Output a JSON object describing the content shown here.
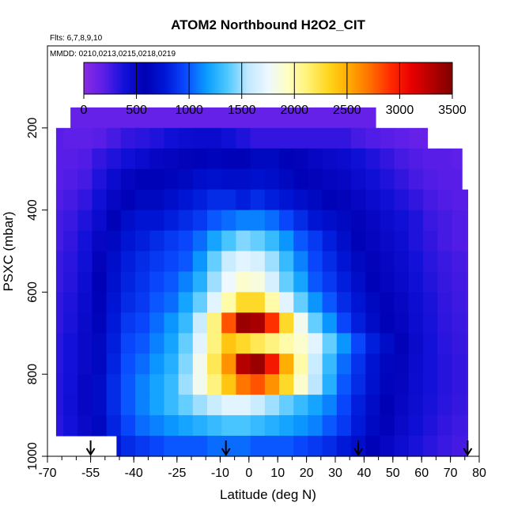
{
  "chart_data": {
    "type": "heatmap",
    "title": "ATOM2 Northbound H2O2_CIT",
    "flights_label": "Flts: 6,7,8,9,10",
    "mmdd_label": "MMDD: 0210,0213,0215,0218,0219",
    "xlabel": "Latitude (deg N)",
    "ylabel": "PSXC (mbar)",
    "xlim": [
      -70,
      80
    ],
    "ylim": [
      1000,
      0
    ],
    "x_tick_labels": [
      "-70",
      "-55",
      "-40",
      "-25",
      "-10",
      "0",
      "10",
      "20",
      "30",
      "40",
      "50",
      "60",
      "70",
      "80"
    ],
    "x_tick_values": [
      -70,
      -55,
      -40,
      -25,
      -10,
      0,
      10,
      20,
      30,
      40,
      50,
      60,
      70,
      80
    ],
    "y_tick_labels": [
      "200",
      "400",
      "600",
      "800",
      "1000"
    ],
    "y_tick_values": [
      200,
      400,
      600,
      800,
      1000
    ],
    "colorbar": {
      "range": [
        0,
        3500
      ],
      "tick_labels": [
        "0",
        "500",
        "1000",
        "1500",
        "2000",
        "2500",
        "3000",
        "3500"
      ],
      "tick_values": [
        0,
        500,
        1000,
        1500,
        2000,
        2500,
        3000,
        3500
      ],
      "colors": [
        "#8a2be2",
        "#5a1ee8",
        "#1010d8",
        "#0000b4",
        "#0018d8",
        "#0a4cff",
        "#0a9cff",
        "#4cc8ff",
        "#bfe8ff",
        "#eef8ff",
        "#ffffc0",
        "#fff070",
        "#ffd41a",
        "#ffa800",
        "#ff6e00",
        "#ff2a00",
        "#e80000",
        "#b40000",
        "#800000"
      ]
    },
    "flight_latitude_markers": [
      -55,
      -8,
      38,
      76
    ],
    "latitudes": [
      -67,
      -62,
      -57,
      -52,
      -47,
      -42,
      -37,
      -32,
      -27,
      -22,
      -17,
      -12,
      -7,
      -2,
      3,
      8,
      13,
      18,
      23,
      28,
      33,
      38,
      43,
      48,
      53,
      58,
      63,
      68,
      73,
      78
    ],
    "pressure_levels": [
      175,
      225,
      275,
      325,
      375,
      425,
      475,
      525,
      575,
      625,
      675,
      725,
      775,
      825,
      875,
      925,
      975
    ],
    "values": [
      [
        150,
        150,
        150,
        150,
        150,
        150,
        150,
        150,
        150,
        150,
        150,
        150,
        150,
        150,
        150,
        150,
        150,
        150,
        150,
        150,
        150,
        150,
        150,
        150,
        150,
        150,
        150,
        150,
        150,
        150
      ],
      [
        200,
        180,
        180,
        200,
        250,
        300,
        320,
        350,
        400,
        420,
        450,
        450,
        400,
        350,
        300,
        300,
        300,
        300,
        300,
        300,
        300,
        250,
        220,
        200,
        180,
        150,
        150,
        150,
        150,
        150
      ],
      [
        200,
        200,
        220,
        300,
        350,
        400,
        450,
        500,
        520,
        550,
        600,
        620,
        600,
        600,
        650,
        650,
        600,
        550,
        500,
        480,
        450,
        400,
        350,
        300,
        250,
        220,
        200,
        200,
        180,
        180
      ],
      [
        200,
        220,
        250,
        350,
        450,
        520,
        600,
        600,
        620,
        650,
        700,
        720,
        700,
        700,
        720,
        700,
        650,
        600,
        550,
        520,
        500,
        450,
        400,
        350,
        300,
        250,
        220,
        200,
        200,
        200
      ],
      [
        220,
        250,
        300,
        400,
        500,
        600,
        650,
        650,
        700,
        750,
        800,
        850,
        850,
        800,
        850,
        800,
        750,
        700,
        650,
        600,
        550,
        500,
        450,
        400,
        350,
        300,
        250,
        220,
        200,
        200
      ],
      [
        250,
        280,
        350,
        450,
        600,
        700,
        750,
        750,
        800,
        850,
        900,
        1000,
        1050,
        1100,
        1100,
        1050,
        950,
        850,
        750,
        700,
        650,
        550,
        500,
        450,
        400,
        350,
        280,
        250,
        220,
        200
      ],
      [
        250,
        300,
        380,
        500,
        650,
        750,
        800,
        850,
        900,
        950,
        1050,
        1200,
        1350,
        1450,
        1400,
        1300,
        1150,
        1000,
        900,
        800,
        700,
        600,
        520,
        480,
        420,
        350,
        300,
        250,
        220,
        200
      ],
      [
        280,
        320,
        400,
        550,
        700,
        800,
        850,
        900,
        950,
        1000,
        1150,
        1400,
        1600,
        1700,
        1650,
        1500,
        1300,
        1100,
        950,
        850,
        750,
        650,
        550,
        500,
        450,
        380,
        320,
        280,
        250,
        220
      ],
      [
        280,
        330,
        420,
        580,
        720,
        820,
        880,
        950,
        1000,
        1100,
        1250,
        1500,
        1750,
        1900,
        1850,
        1650,
        1400,
        1200,
        1000,
        900,
        800,
        700,
        600,
        520,
        470,
        400,
        340,
        290,
        260,
        230
      ],
      [
        300,
        350,
        450,
        600,
        750,
        850,
        900,
        1000,
        1050,
        1200,
        1400,
        1700,
        2000,
        2300,
        2300,
        2000,
        1700,
        1400,
        1150,
        1000,
        850,
        750,
        650,
        560,
        500,
        420,
        360,
        300,
        270,
        240
      ],
      [
        300,
        360,
        460,
        620,
        780,
        900,
        950,
        1050,
        1150,
        1300,
        1600,
        2100,
        2800,
        3400,
        3350,
        2900,
        2300,
        1800,
        1400,
        1150,
        950,
        800,
        680,
        600,
        520,
        440,
        370,
        310,
        280,
        250
      ],
      [
        320,
        380,
        480,
        650,
        800,
        950,
        1000,
        1100,
        1200,
        1400,
        1700,
        2100,
        2400,
        2300,
        2200,
        2100,
        2000,
        1900,
        1700,
        1400,
        1150,
        950,
        800,
        680,
        560,
        460,
        380,
        320,
        290,
        260
      ],
      [
        320,
        380,
        480,
        650,
        820,
        980,
        1050,
        1150,
        1250,
        1450,
        1800,
        2200,
        2600,
        3300,
        3400,
        3000,
        2500,
        2000,
        1600,
        1300,
        1050,
        880,
        740,
        640,
        540,
        450,
        380,
        330,
        300,
        270
      ],
      [
        330,
        390,
        500,
        680,
        850,
        1000,
        1100,
        1200,
        1300,
        1500,
        1800,
        2100,
        2400,
        2700,
        2800,
        2600,
        2300,
        1900,
        1550,
        1250,
        1000,
        850,
        720,
        620,
        520,
        440,
        380,
        330,
        300,
        270
      ],
      [
        330,
        400,
        500,
        680,
        850,
        1000,
        1100,
        1200,
        1300,
        1400,
        1500,
        1600,
        1700,
        1700,
        1600,
        1500,
        1400,
        1300,
        1200,
        1100,
        950,
        800,
        680,
        580,
        500,
        430,
        370,
        320,
        290,
        260
      ],
      [
        320,
        380,
        480,
        650,
        820,
        950,
        1050,
        1100,
        1150,
        1200,
        1250,
        1300,
        1350,
        1350,
        1300,
        1250,
        1200,
        1150,
        1100,
        1000,
        900,
        780,
        660,
        560,
        480,
        410,
        350,
        300,
        270,
        250
      ],
      [
        300,
        350,
        450,
        600,
        750,
        850,
        900,
        950,
        1000,
        1000,
        1000,
        1050,
        1050,
        1050,
        1000,
        1000,
        1000,
        950,
        900,
        850,
        780,
        700,
        600,
        500,
        430,
        370,
        320,
        280,
        250,
        230
      ]
    ],
    "row_extents": [
      [
        -62,
        44
      ],
      [
        -67,
        62
      ],
      [
        -67,
        74
      ],
      [
        -67,
        74
      ],
      [
        -67,
        76
      ],
      [
        -67,
        76
      ],
      [
        -67,
        76
      ],
      [
        -67,
        76
      ],
      [
        -67,
        76
      ],
      [
        -67,
        76
      ],
      [
        -67,
        76
      ],
      [
        -67,
        76
      ],
      [
        -67,
        76
      ],
      [
        -67,
        76
      ],
      [
        -67,
        76
      ],
      [
        -67,
        76
      ],
      [
        -46,
        76
      ]
    ]
  }
}
